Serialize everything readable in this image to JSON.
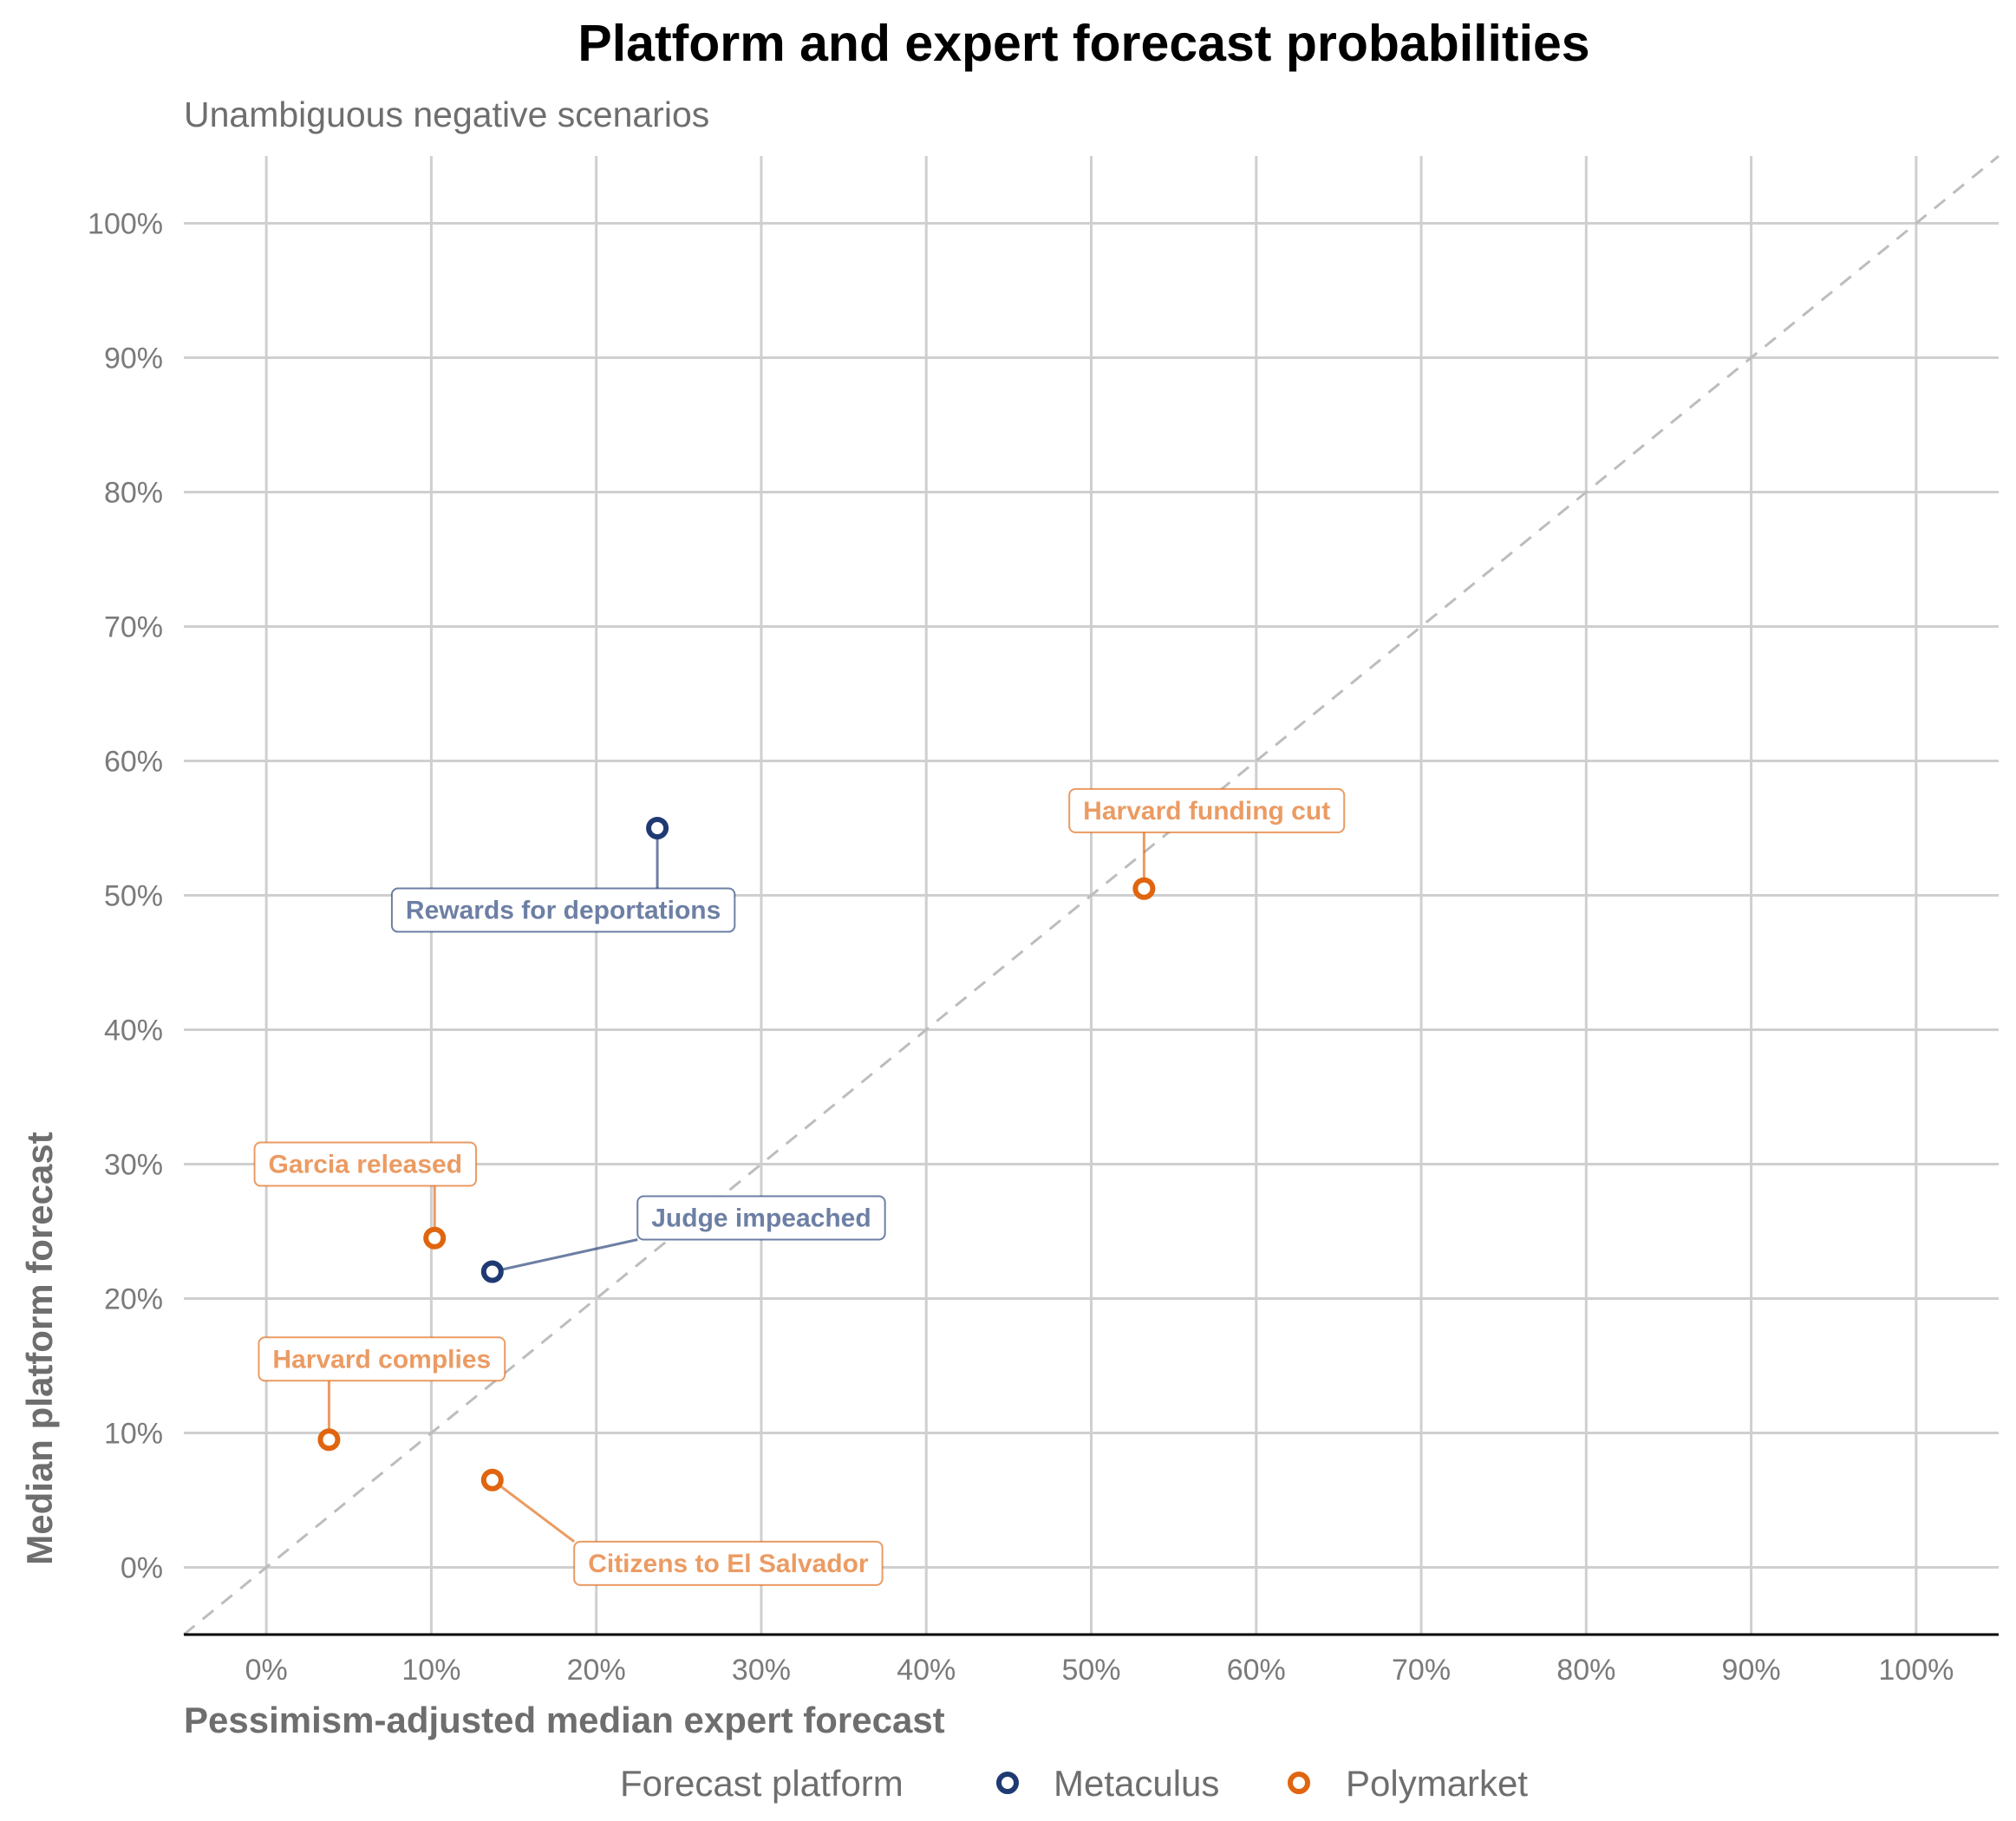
{
  "title": "Platform and expert forecast probabilities",
  "subtitle": "Unambiguous negative scenarios",
  "colors": {
    "Metaculus": "#1f3a73",
    "Polymarket": "#e0650f",
    "grid": "#cfcfcf",
    "diagonal": "#bdbdbd"
  },
  "legend": {
    "title": "Forecast platform",
    "items": [
      {
        "name": "Metaculus",
        "icon": "open-circle-icon"
      },
      {
        "name": "Polymarket",
        "icon": "open-circle-icon"
      }
    ]
  },
  "chart_data": {
    "type": "scatter",
    "xlabel": "Pessimism-adjusted median expert forecast",
    "ylabel": "Median platform forecast",
    "xlim": [
      -5,
      105
    ],
    "ylim": [
      -5,
      105
    ],
    "x_ticks": [
      0,
      10,
      20,
      30,
      40,
      50,
      60,
      70,
      80,
      90,
      100
    ],
    "y_ticks": [
      0,
      10,
      20,
      30,
      40,
      50,
      60,
      70,
      80,
      90,
      100
    ],
    "x_tick_labels": [
      "0%",
      "10%",
      "20%",
      "30%",
      "40%",
      "50%",
      "60%",
      "70%",
      "80%",
      "90%",
      "100%"
    ],
    "y_tick_labels": [
      "0%",
      "10%",
      "20%",
      "30%",
      "40%",
      "50%",
      "60%",
      "70%",
      "80%",
      "90%",
      "100%"
    ],
    "reference_line": {
      "type": "diagonal",
      "style": "dashed",
      "equation": "y = x"
    },
    "grid": true,
    "legend_position": "bottom",
    "points": [
      {
        "label": "Rewards for deportations",
        "platform": "Metaculus",
        "x": 23.7,
        "y": 55.0,
        "label_x": 18,
        "label_y": 48.9
      },
      {
        "label": "Judge impeached",
        "platform": "Metaculus",
        "x": 13.7,
        "y": 22.0,
        "label_x": 30,
        "label_y": 26.0
      },
      {
        "label": "Harvard funding cut",
        "platform": "Polymarket",
        "x": 53.2,
        "y": 50.5,
        "label_x": 57,
        "label_y": 56.3
      },
      {
        "label": "Garcia released",
        "platform": "Polymarket",
        "x": 10.2,
        "y": 24.5,
        "label_x": 6,
        "label_y": 30.0
      },
      {
        "label": "Harvard complies",
        "platform": "Polymarket",
        "x": 3.8,
        "y": 9.5,
        "label_x": 7,
        "label_y": 15.5
      },
      {
        "label": "Citizens to El Salvador",
        "platform": "Polymarket",
        "x": 13.7,
        "y": 6.5,
        "label_x": 28,
        "label_y": 0.3
      }
    ]
  }
}
